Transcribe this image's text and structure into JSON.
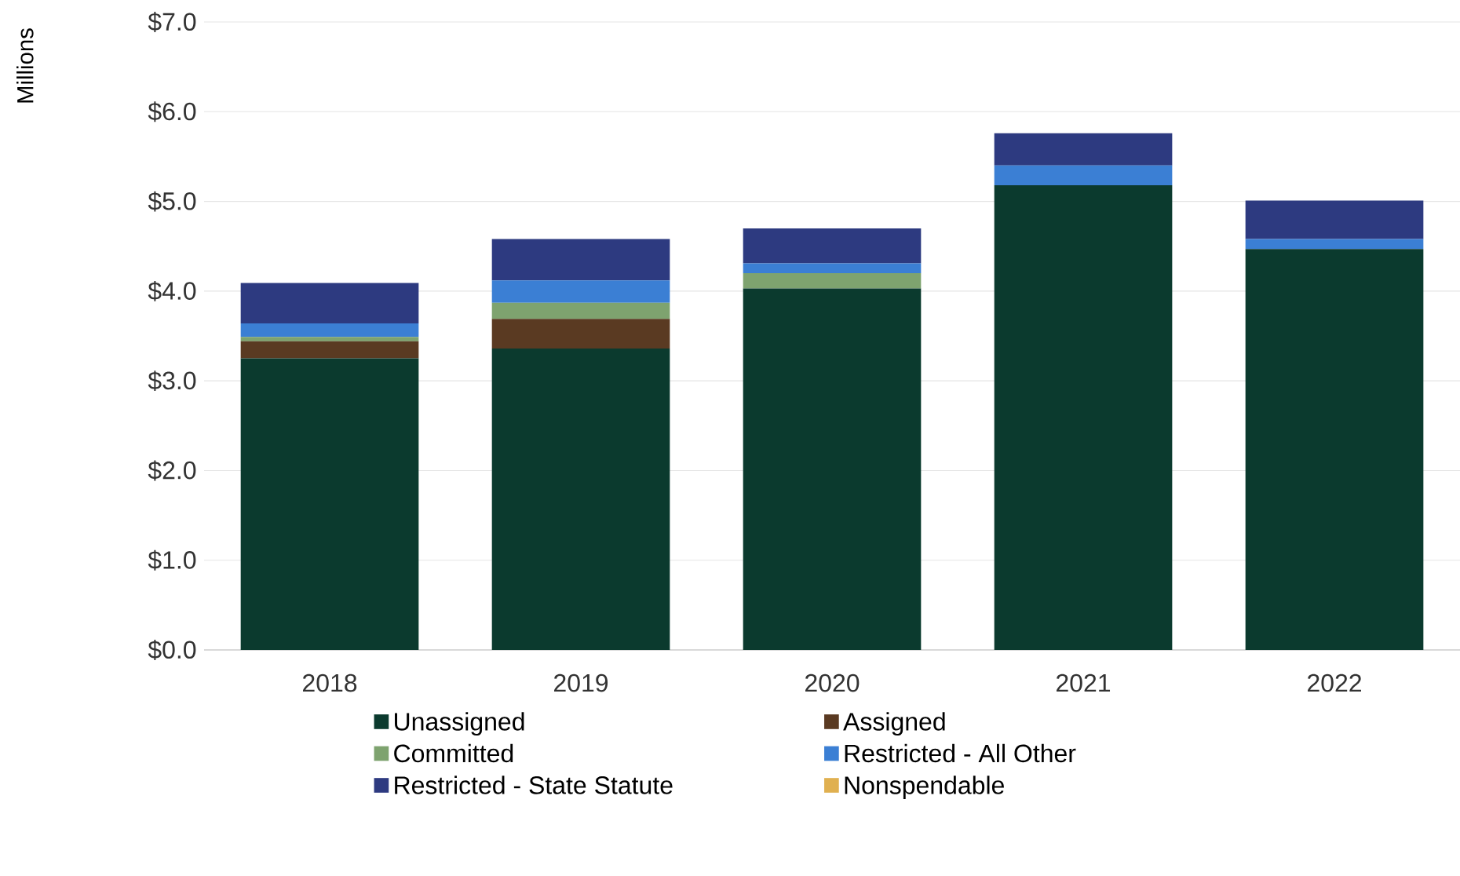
{
  "chart_data": {
    "type": "bar",
    "stacked": true,
    "ylabel": "Millions",
    "categories": [
      "2018",
      "2019",
      "2020",
      "2021",
      "2022"
    ],
    "series": [
      {
        "name": "Unassigned",
        "color": "#0b3a2e",
        "values": [
          3.25,
          3.36,
          4.03,
          5.18,
          4.47
        ]
      },
      {
        "name": "Assigned",
        "color": "#5a3a22",
        "values": [
          0.19,
          0.33,
          0,
          0,
          0
        ]
      },
      {
        "name": "Committed",
        "color": "#7ea36f",
        "values": [
          0.05,
          0.18,
          0.17,
          0,
          0
        ]
      },
      {
        "name": "Restricted - All Other",
        "color": "#3b7fd4",
        "values": [
          0.15,
          0.25,
          0.11,
          0.22,
          0.11
        ]
      },
      {
        "name": "Restricted - State Statute",
        "color": "#2d3a80",
        "values": [
          0.45,
          0.46,
          0.39,
          0.36,
          0.43
        ]
      },
      {
        "name": "Nonspendable",
        "color": "#e0b050",
        "values": [
          0,
          0,
          0,
          0,
          0
        ]
      }
    ],
    "ylim": [
      0,
      7
    ],
    "yticks": [
      {
        "value": 0,
        "label": "$0.0"
      },
      {
        "value": 1,
        "label": "$1.0"
      },
      {
        "value": 2,
        "label": "$2.0"
      },
      {
        "value": 3,
        "label": "$3.0"
      },
      {
        "value": 4,
        "label": "$4.0"
      },
      {
        "value": 5,
        "label": "$5.0"
      },
      {
        "value": 6,
        "label": "$6.0"
      },
      {
        "value": 7,
        "label": "$7.0"
      }
    ],
    "grid": "y",
    "legend": "bottom"
  }
}
